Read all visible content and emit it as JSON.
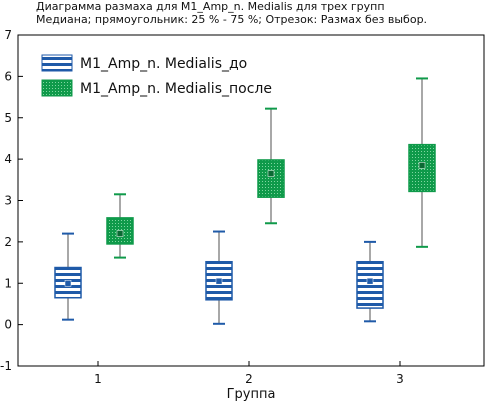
{
  "chart_data": {
    "type": "boxplot",
    "title_line1": "Диаграмма размаха для M1_Amp_n. Medialis для трех групп",
    "title_line2": "Медиана; прямоугольник: 25 % - 75 %; Отрезок: Размах без выбор.",
    "xlabel": "Группа",
    "ylabel": "",
    "ylim": [
      -1,
      7
    ],
    "yticks": [
      "-1",
      "0",
      "1",
      "2",
      "3",
      "4",
      "5",
      "6",
      "7"
    ],
    "categories": [
      "1",
      "2",
      "3"
    ],
    "legend_position": "top-left",
    "series": [
      {
        "name": "M1_Amp_n. Medialis_до",
        "color": "#1f5aa8",
        "stats": [
          {
            "min": 0.12,
            "q1": 0.65,
            "median": 1.0,
            "q3": 1.38,
            "max": 2.2
          },
          {
            "min": 0.02,
            "q1": 0.6,
            "median": 1.05,
            "q3": 1.52,
            "max": 2.25
          },
          {
            "min": 0.08,
            "q1": 0.4,
            "median": 1.05,
            "q3": 1.52,
            "max": 2.0
          }
        ]
      },
      {
        "name": "M1_Amp_n. Medialis_после",
        "color": "#0f9a4a",
        "stats": [
          {
            "min": 1.62,
            "q1": 1.95,
            "median": 2.2,
            "q3": 2.58,
            "max": 3.15
          },
          {
            "min": 2.45,
            "q1": 3.08,
            "median": 3.65,
            "q3": 3.98,
            "max": 5.22
          },
          {
            "min": 1.88,
            "q1": 3.22,
            "median": 3.85,
            "q3": 4.35,
            "max": 5.95
          }
        ]
      }
    ]
  }
}
